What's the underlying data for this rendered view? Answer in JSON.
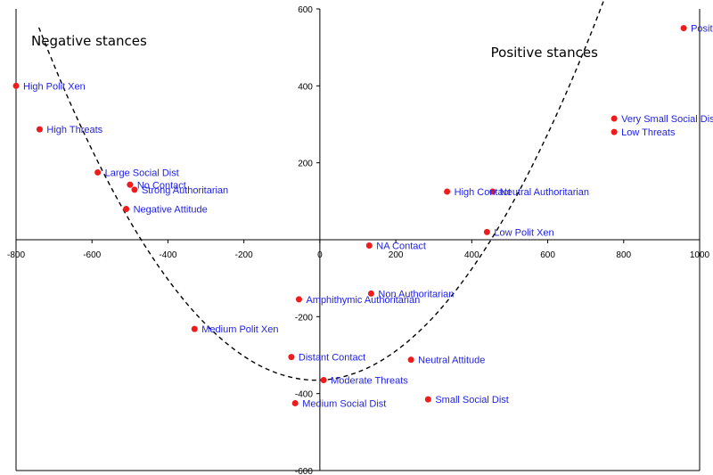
{
  "chart_data": {
    "type": "scatter",
    "title": "",
    "xlabel": "",
    "ylabel": "",
    "xlim": [
      -800,
      1000
    ],
    "ylim": [
      -600,
      600
    ],
    "x_ticks": [
      -800,
      -600,
      -400,
      -200,
      0,
      200,
      400,
      600,
      800,
      1000
    ],
    "y_ticks": [
      -600,
      -400,
      -200,
      0,
      200,
      400,
      600
    ],
    "x_tick_labels": [
      "-800",
      "-600",
      "-400",
      "-200",
      "0",
      "200",
      "400",
      "600",
      "800",
      "1000"
    ],
    "y_tick_labels": [
      "-600",
      "-400",
      "-200",
      "0",
      "200",
      "400",
      "600"
    ],
    "grid": false,
    "annotations": [
      {
        "text": "Negative stances",
        "x": -760,
        "y": 505
      },
      {
        "text": "Positive stances",
        "x": 450,
        "y": 475
      }
    ],
    "points": [
      {
        "label": "High Polit Xen",
        "x": -800,
        "y": 400
      },
      {
        "label": "High Threats",
        "x": -738,
        "y": 287
      },
      {
        "label": "Large Social Dist",
        "x": -585,
        "y": 175
      },
      {
        "label": "No Contact",
        "x": -500,
        "y": 143
      },
      {
        "label": "Strong Authoritarian",
        "x": -488,
        "y": 130
      },
      {
        "label": "Negative Attitude",
        "x": -510,
        "y": 80
      },
      {
        "label": "Positive Attitude",
        "x": 958,
        "y": 550
      },
      {
        "label": "Very Small Social Dist",
        "x": 775,
        "y": 315
      },
      {
        "label": "Low Threats",
        "x": 775,
        "y": 280
      },
      {
        "label": "High Contact",
        "x": 335,
        "y": 125
      },
      {
        "label": "Neutral Authoritarian",
        "x": 455,
        "y": 125
      },
      {
        "label": "Low Polit Xen",
        "x": 440,
        "y": 20
      },
      {
        "label": "NA Contact",
        "x": 130,
        "y": -15
      },
      {
        "label": "Non Authoritarian",
        "x": 135,
        "y": -140
      },
      {
        "label": "Amphithymic Authoritarian",
        "x": -55,
        "y": -155
      },
      {
        "label": "Medium Polit Xen",
        "x": -330,
        "y": -232
      },
      {
        "label": "Distant Contact",
        "x": -75,
        "y": -305
      },
      {
        "label": "Neutral Attitude",
        "x": 240,
        "y": -312
      },
      {
        "label": "Moderate Threats",
        "x": 10,
        "y": -365
      },
      {
        "label": "Small Social Dist",
        "x": 285,
        "y": -415
      },
      {
        "label": "Medium Social Dist",
        "x": -65,
        "y": -425
      }
    ],
    "trend_curve": {
      "style": "dashed",
      "vertex": [
        -10,
        -365
      ],
      "a": 0.00172,
      "x_range": [
        -740,
        920
      ]
    },
    "colors": {
      "point": "#ee1c1c",
      "label": "#1e1ee6",
      "axis": "#000000",
      "curve": "#000000"
    }
  }
}
